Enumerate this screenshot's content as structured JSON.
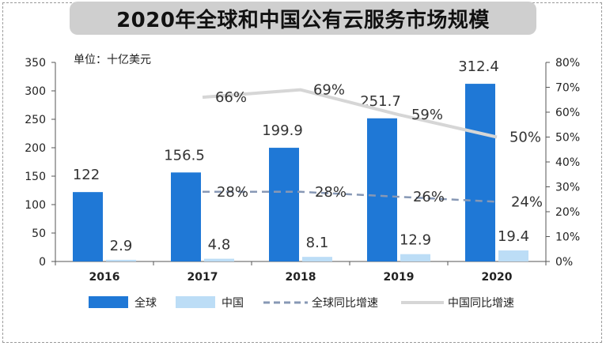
{
  "title": "2020年全球和中国公有云服务市场规模",
  "colors": {
    "global_bar": "#1F78D6",
    "china_bar": "#BCDDF6",
    "global_growth": "#8798B5",
    "china_growth": "#D6D6D6"
  },
  "chart_data": {
    "type": "bar",
    "title": "2020年全球和中国公有云服务市场规模",
    "unit_label": "单位：十亿美元",
    "categories": [
      "2016",
      "2017",
      "2018",
      "2019",
      "2020"
    ],
    "y_ticks": [
      "0",
      "50",
      "100",
      "150",
      "200",
      "250",
      "300",
      "350"
    ],
    "y2_ticks": [
      "0%",
      "10%",
      "20%",
      "30%",
      "40%",
      "50%",
      "60%",
      "70%",
      "80%"
    ],
    "ylim": [
      0,
      350
    ],
    "y2lim": [
      0,
      80
    ],
    "grid": false,
    "legend_position": "bottom",
    "series": [
      {
        "name": "全球",
        "kind": "bar",
        "axis": "left",
        "values": [
          122,
          156.5,
          199.9,
          251.7,
          312.4
        ],
        "labels": [
          "122",
          "156.5",
          "199.9",
          "251.7",
          "312.4"
        ]
      },
      {
        "name": "中国",
        "kind": "bar",
        "axis": "left",
        "values": [
          2.9,
          4.8,
          8.1,
          12.9,
          19.4
        ],
        "labels": [
          "2.9",
          "4.8",
          "8.1",
          "12.9",
          "19.4"
        ]
      },
      {
        "name": "全球同比增速",
        "kind": "line",
        "style": "dashed",
        "axis": "right",
        "values": [
          null,
          28,
          28,
          26,
          24
        ],
        "labels": [
          "",
          "28%",
          "28%",
          "26%",
          "24%"
        ]
      },
      {
        "name": "中国同比增速",
        "kind": "line",
        "style": "solid",
        "axis": "right",
        "values": [
          null,
          66,
          69,
          59,
          50
        ],
        "labels": [
          "",
          "66%",
          "69%",
          "59%",
          "50%"
        ]
      }
    ]
  }
}
